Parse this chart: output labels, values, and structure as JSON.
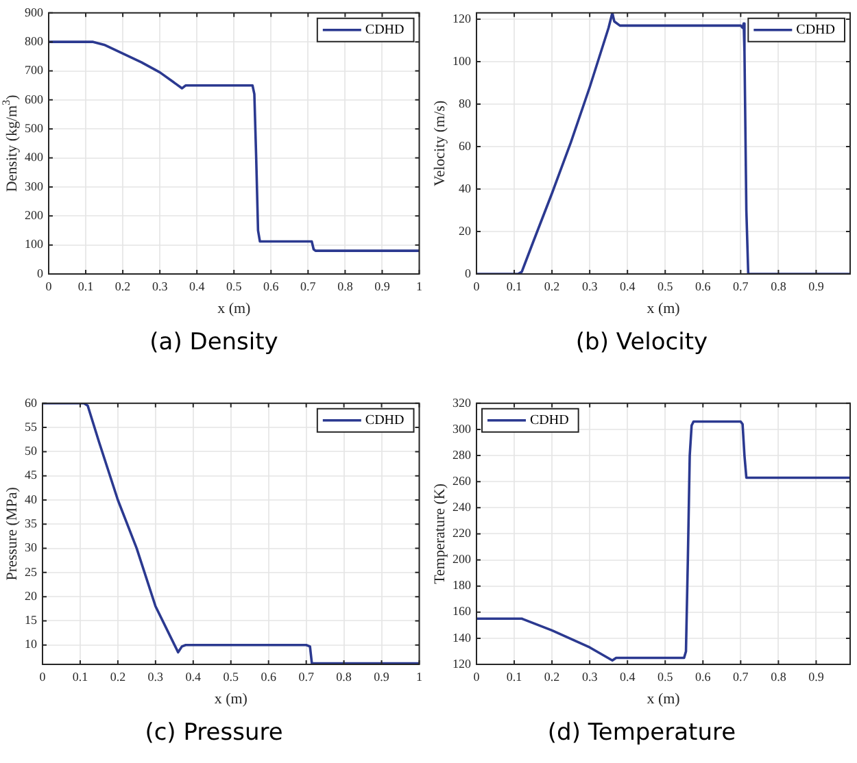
{
  "chart_data": [
    {
      "type": "line",
      "title": "(a) Density",
      "xlabel": "x (m)",
      "ylabel": "Density (kg/m$^{3}$)",
      "xlim": [
        0,
        1
      ],
      "xticks": [
        0,
        0.1,
        0.2,
        0.3,
        0.4,
        0.5,
        0.6,
        0.7,
        0.8,
        0.9,
        1
      ],
      "ylim": [
        0,
        900
      ],
      "yticks": [
        0,
        100,
        200,
        300,
        400,
        500,
        600,
        700,
        800,
        900
      ],
      "grid": true,
      "legend": "top right",
      "marker": "none",
      "line_style": "solid",
      "series": [
        {
          "name": "CDHD",
          "color": "#2b3990",
          "x": [
            0,
            0.12,
            0.15,
            0.2,
            0.25,
            0.3,
            0.36,
            0.37,
            0.55,
            0.555,
            0.56,
            0.565,
            0.57,
            0.71,
            0.715,
            0.72,
            1
          ],
          "values": [
            800,
            800,
            790,
            760,
            730,
            695,
            640,
            650,
            650,
            620,
            400,
            150,
            112,
            112,
            85,
            80,
            80
          ]
        }
      ]
    },
    {
      "type": "line",
      "title": "(b) Velocity",
      "xlabel": "x (m)",
      "ylabel": "Velocity (m/s)",
      "xlim": [
        0,
        0.99
      ],
      "xticks": [
        0,
        0.1,
        0.2,
        0.3,
        0.4,
        0.5,
        0.6,
        0.7,
        0.8,
        0.9
      ],
      "ylim": [
        0,
        123
      ],
      "yticks": [
        0,
        20,
        40,
        60,
        80,
        100,
        120
      ],
      "grid": true,
      "legend": "top right",
      "marker": "none",
      "line_style": "solid",
      "series": [
        {
          "name": "CDHD",
          "color": "#2b3990",
          "x": [
            0,
            0.11,
            0.12,
            0.15,
            0.2,
            0.25,
            0.3,
            0.35,
            0.36,
            0.365,
            0.38,
            0.7,
            0.705,
            0.708,
            0.71,
            0.715,
            0.72,
            0.99
          ],
          "values": [
            0,
            0,
            1,
            15,
            38,
            62,
            88,
            116,
            123,
            119,
            117,
            117,
            116,
            118,
            105,
            30,
            0,
            0
          ]
        }
      ]
    },
    {
      "type": "line",
      "title": "(c) Pressure",
      "xlabel": "x (m)",
      "ylabel": "Pressure (MPa)",
      "xlim": [
        0,
        1
      ],
      "xticks": [
        0,
        0.1,
        0.2,
        0.3,
        0.4,
        0.5,
        0.6,
        0.7,
        0.8,
        0.9,
        1
      ],
      "ylim": [
        6,
        60
      ],
      "yticks": [
        10,
        15,
        20,
        25,
        30,
        35,
        40,
        45,
        50,
        55,
        60
      ],
      "grid": true,
      "legend": "top right",
      "marker": "none",
      "line_style": "solid",
      "series": [
        {
          "name": "CDHD",
          "color": "#2b3990",
          "x": [
            0,
            0.11,
            0.12,
            0.15,
            0.2,
            0.25,
            0.3,
            0.36,
            0.37,
            0.38,
            0.7,
            0.71,
            0.715,
            1
          ],
          "values": [
            60,
            60,
            59.5,
            52,
            40,
            30,
            18,
            8.5,
            9.7,
            10,
            10,
            9.7,
            6.2,
            6.2
          ]
        }
      ]
    },
    {
      "type": "line",
      "title": "(d) Temperature",
      "xlabel": "x (m)",
      "ylabel": "Temperature (K)",
      "xlim": [
        0,
        0.99
      ],
      "xticks": [
        0,
        0.1,
        0.2,
        0.3,
        0.4,
        0.5,
        0.6,
        0.7,
        0.8,
        0.9
      ],
      "ylim": [
        120,
        320
      ],
      "yticks": [
        120,
        140,
        160,
        180,
        200,
        220,
        240,
        260,
        280,
        300,
        320
      ],
      "grid": true,
      "legend": "top left",
      "marker": "none",
      "line_style": "solid",
      "series": [
        {
          "name": "CDHD",
          "color": "#2b3990",
          "x": [
            0,
            0.12,
            0.2,
            0.3,
            0.36,
            0.37,
            0.55,
            0.555,
            0.56,
            0.565,
            0.57,
            0.575,
            0.7,
            0.705,
            0.71,
            0.715,
            0.99
          ],
          "values": [
            155,
            155,
            146,
            133,
            123,
            125,
            125,
            130,
            200,
            280,
            303,
            306,
            306,
            304,
            280,
            263,
            263
          ]
        }
      ]
    }
  ]
}
